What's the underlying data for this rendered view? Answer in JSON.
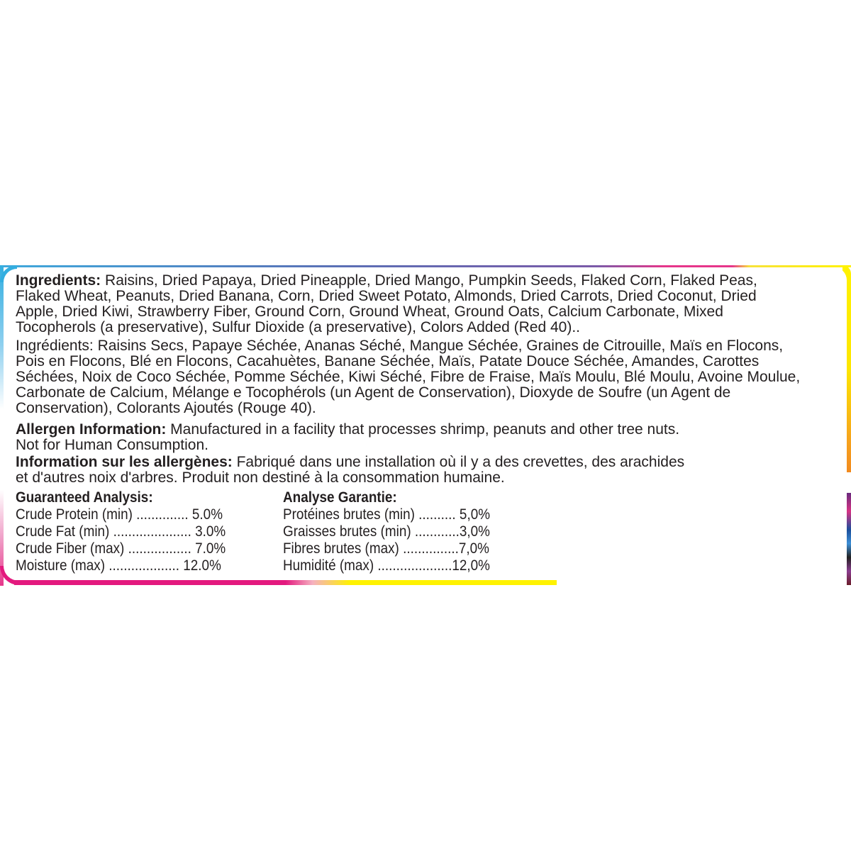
{
  "ingredients_en": {
    "label": "Ingredients:",
    "lines": [
      " Raisins, Dried Papaya, Dried Pineapple, Dried Mango, Pumpkin Seeds, Flaked Corn, Flaked Peas,",
      "Flaked Wheat, Peanuts, Dried Banana, Corn, Dried Sweet Potato, Almonds, Dried Carrots, Dried Coconut, Dried",
      "Apple, Dried Kiwi, Strawberry Fiber, Ground Corn, Ground Wheat, Ground Oats, Calcium Carbonate, Mixed",
      "Tocopherols (a preservative), Sulfur Dioxide (a preservative), Colors Added (Red 40).."
    ]
  },
  "ingredients_fr": {
    "lines": [
      "Ingrédients: Raisins Secs, Papaye Séchée, Ananas Séché, Mangue Séchée, Graines de Citrouille, Maïs en Flocons,",
      "Pois en Flocons, Blé en Flocons, Cacahuètes, Banane Séchée, Maïs, Patate Douce Séchée, Amandes, Carottes",
      "Séchées, Noix de Coco Séchée, Pomme Séchée, Kiwi Séché, Fibre de Fraise, Maïs Moulu, Blé Moulu, Avoine Moulue,",
      "Carbonate de Calcium, Mélange e Tocophérols (un Agent de Conservation), Dioxyde de Soufre (un Agent de",
      "Conservation), Colorants Ajoutés (Rouge 40)."
    ]
  },
  "allergen_en": {
    "label": "Allergen Information:",
    "lines": [
      " Manufactured in a facility that processes shrimp, peanuts and other tree nuts.",
      "Not for Human Consumption."
    ]
  },
  "allergen_fr": {
    "label": "Information sur les allergènes:",
    "lines": [
      " Fabriqué dans une installation où il y a des crevettes, des arachides",
      "et d'autres noix d'arbres. Produit non destiné à la consommation humaine."
    ]
  },
  "analysis_en": {
    "title": "Guaranteed Analysis:",
    "rows": [
      "Crude Protein (min) .............. 5.0%",
      "Crude Fat (min) ..................... 3.0%",
      "Crude Fiber (max) ................. 7.0%",
      "Moisture (max) ................... 12.0%"
    ]
  },
  "analysis_fr": {
    "title": "Analyse Garantie:",
    "rows": [
      "Protéines brutes (min) .......... 5,0%",
      "Graisses brutes (min) ............3,0%",
      "Fibres brutes (max) ...............7,0%",
      "Humidité (max) ....................12,0%"
    ]
  },
  "colors": {
    "blue": "#33aee0",
    "pink": "#e3197e",
    "yellow": "#fff200",
    "orange": "#f28a1e",
    "text": "#231f20"
  }
}
